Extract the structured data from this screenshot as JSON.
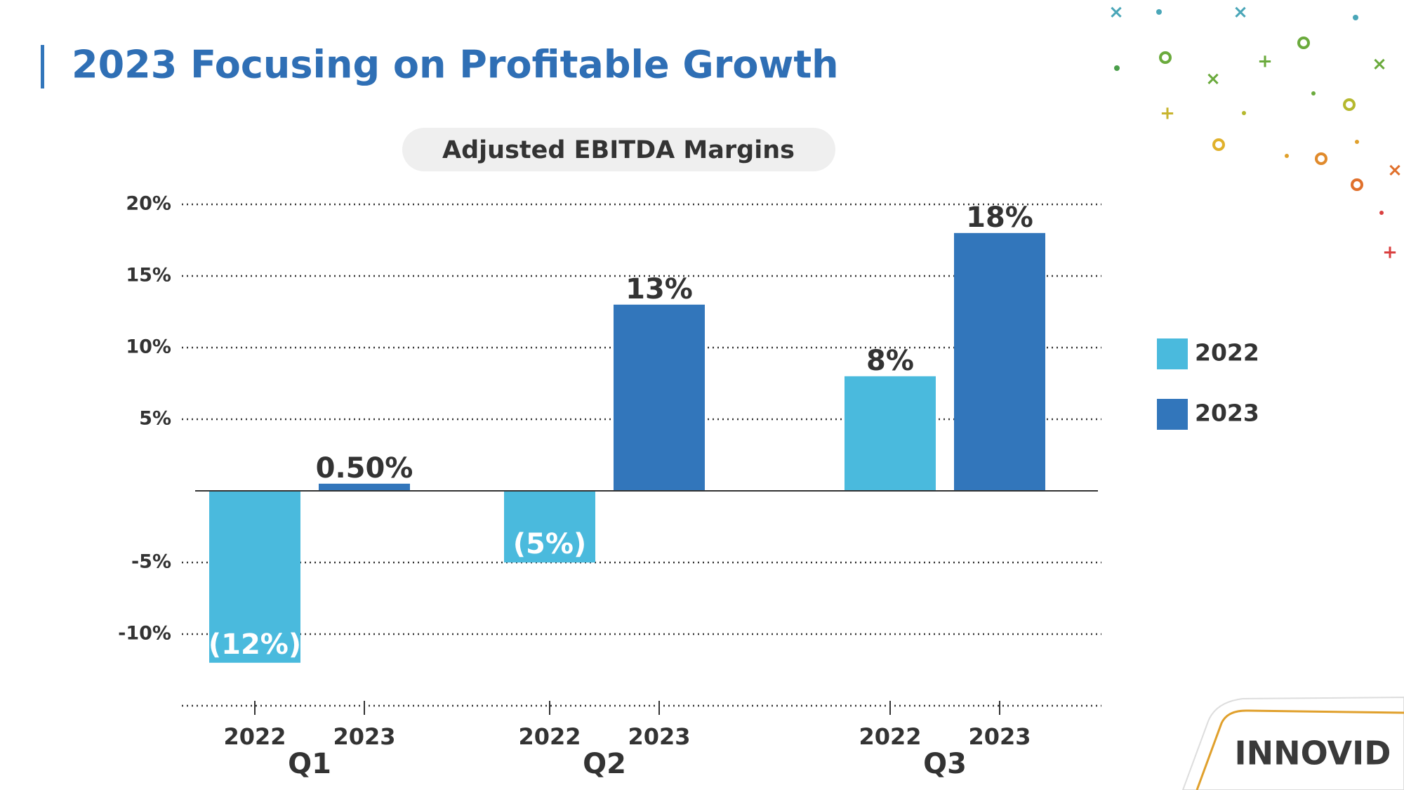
{
  "title": "2023 Focusing on Profitable Growth",
  "logo": "INNOVID",
  "chart_data": {
    "type": "bar",
    "title": "Adjusted EBITDA Margins",
    "categories": [
      "Q1",
      "Q2",
      "Q3"
    ],
    "series": [
      {
        "name": "2022",
        "color": "#4abadd",
        "values": [
          -12,
          -5,
          8
        ],
        "value_labels": [
          "(12%)",
          "(5%)",
          "8%"
        ]
      },
      {
        "name": "2023",
        "color": "#3276bb",
        "values": [
          0.5,
          13,
          18
        ],
        "value_labels": [
          "0.50%",
          "13%",
          "18%"
        ]
      }
    ],
    "ylim": [
      -15,
      20
    ],
    "yticks": [
      {
        "value": -10,
        "label": "-10%"
      },
      {
        "value": -5,
        "label": "-5%"
      },
      {
        "value": 5,
        "label": "5%"
      },
      {
        "value": 10,
        "label": "10%"
      },
      {
        "value": 15,
        "label": "15%"
      },
      {
        "value": 20,
        "label": "20%"
      }
    ],
    "grid": true,
    "legend": "right"
  }
}
